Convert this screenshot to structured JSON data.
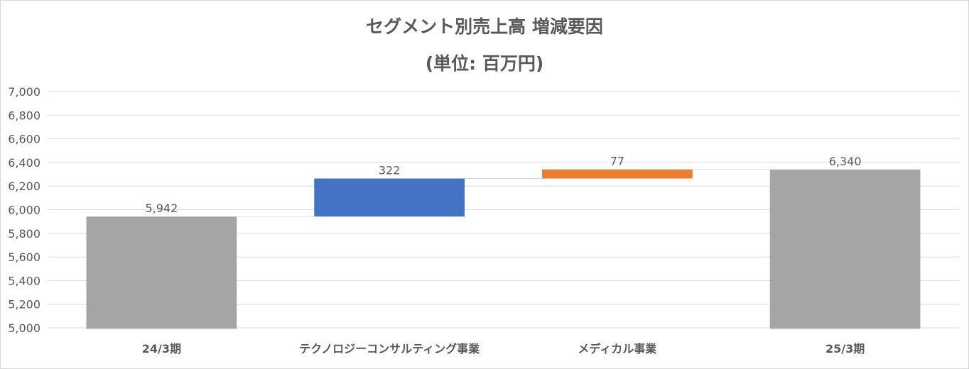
{
  "chart_data": {
    "type": "bar",
    "subtype": "waterfall",
    "title": "セグメント別売上高 増減要因",
    "subtitle": "(単位: 百万円)",
    "categories": [
      "24/3期",
      "テクノロジーコンサルティング事業",
      "メディカル事業",
      "25/3期"
    ],
    "steps": [
      {
        "category": "24/3期",
        "kind": "total",
        "value": 5942,
        "label": "5,942",
        "color": "#a5a5a5"
      },
      {
        "category": "テクノロジーコンサルティング事業",
        "kind": "increase",
        "value": 322,
        "label": "322",
        "color": "#4472c4"
      },
      {
        "category": "メディカル事業",
        "kind": "increase",
        "value": 77,
        "label": "77",
        "color": "#ed7d31"
      },
      {
        "category": "25/3期",
        "kind": "total",
        "value": 6340,
        "label": "6,340",
        "color": "#a5a5a5"
      }
    ],
    "ylim": [
      5000,
      7000
    ],
    "yticks": [
      5000,
      5200,
      5400,
      5600,
      5800,
      6000,
      6200,
      6400,
      6600,
      6800,
      7000
    ],
    "ytick_labels": [
      "5,000",
      "5,200",
      "5,400",
      "5,600",
      "5,800",
      "6,000",
      "6,200",
      "6,400",
      "6,600",
      "6,800",
      "7,000"
    ],
    "grid": true,
    "legend": "none",
    "xlabel": "",
    "ylabel": ""
  }
}
